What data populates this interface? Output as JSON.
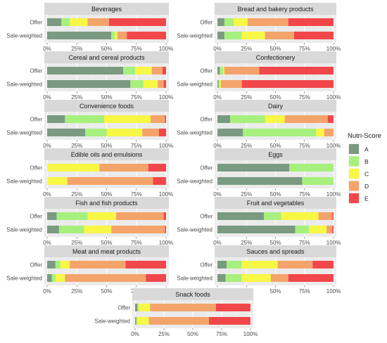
{
  "legend": {
    "title": "Nutri-Score",
    "placement": "right",
    "items": [
      {
        "label": "A",
        "color": "#7a9a82"
      },
      {
        "label": "B",
        "color": "#a7f07d"
      },
      {
        "label": "C",
        "color": "#f7f745"
      },
      {
        "label": "D",
        "color": "#f4a46b"
      },
      {
        "label": "E",
        "color": "#f2474a"
      }
    ]
  },
  "chart_data": {
    "type": "bar",
    "orientation": "horizontal",
    "stacked": true,
    "xlim": [
      0,
      100
    ],
    "x_ticks": [
      "0%",
      "25%",
      "50%",
      "75%",
      "100%"
    ],
    "grid": true,
    "row_labels": [
      "Offer",
      "Sale-weighted"
    ],
    "series_names": [
      "A",
      "B",
      "C",
      "D",
      "E"
    ],
    "panels": [
      {
        "title": "Beverages",
        "rows": [
          [
            12,
            7,
            15,
            18,
            48
          ],
          [
            54,
            3,
            2,
            8,
            33
          ]
        ]
      },
      {
        "title": "Bread and bakery products",
        "rows": [
          [
            6,
            8,
            12,
            35,
            39
          ],
          [
            6,
            15,
            20,
            25,
            34
          ]
        ]
      },
      {
        "title": "Cereal and cereal products",
        "rows": [
          [
            64,
            10,
            14,
            9,
            3
          ],
          [
            70,
            11,
            12,
            5,
            2
          ]
        ]
      },
      {
        "title": "Confectionery",
        "rows": [
          [
            2,
            3,
            1,
            30,
            64
          ],
          [
            1,
            1,
            1,
            18,
            79
          ]
        ]
      },
      {
        "title": "Convenience foods",
        "rows": [
          [
            15,
            33,
            39,
            12,
            1
          ],
          [
            32,
            18,
            30,
            14,
            6
          ]
        ]
      },
      {
        "title": "Dairy",
        "rows": [
          [
            11,
            30,
            17,
            37,
            5
          ],
          [
            22,
            63,
            7,
            8,
            0
          ]
        ]
      },
      {
        "title": "Edible oils and emulsions",
        "rows": [
          [
            0,
            0,
            44,
            41,
            15
          ],
          [
            0,
            0,
            17,
            72,
            11
          ]
        ]
      },
      {
        "title": "Eggs",
        "rows": [
          [
            62,
            38,
            0,
            0,
            0
          ],
          [
            73,
            27,
            0,
            0,
            0
          ]
        ]
      },
      {
        "title": "Fish and fish products",
        "rows": [
          [
            8,
            26,
            24,
            40,
            2
          ],
          [
            10,
            21,
            23,
            45,
            1
          ]
        ]
      },
      {
        "title": "Fruit and vegetables",
        "rows": [
          [
            40,
            15,
            32,
            12,
            1
          ],
          [
            67,
            12,
            15,
            5,
            1
          ]
        ]
      },
      {
        "title": "Meat and meat products",
        "rows": [
          [
            7,
            4,
            8,
            47,
            34
          ],
          [
            4,
            3,
            8,
            68,
            17
          ]
        ]
      },
      {
        "title": "Sauces and spreads",
        "rows": [
          [
            8,
            13,
            31,
            30,
            18
          ],
          [
            7,
            14,
            25,
            15,
            39
          ]
        ]
      },
      {
        "title": "Snack foods",
        "rows": [
          [
            2,
            1,
            10,
            57,
            30
          ],
          [
            1,
            1,
            10,
            52,
            36
          ]
        ]
      }
    ]
  }
}
